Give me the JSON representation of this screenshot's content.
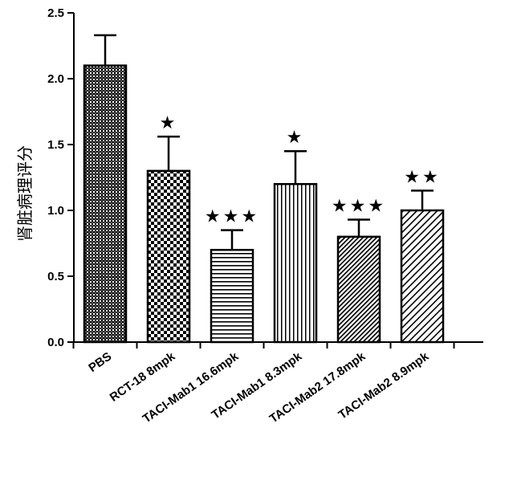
{
  "chart_data": {
    "type": "bar",
    "title": "",
    "xlabel": "",
    "ylabel": "肾脏病理评分",
    "ylim": [
      0,
      2.5
    ],
    "yticks": [
      "0.0",
      "0.5",
      "1.0",
      "1.5",
      "2.0",
      "2.5"
    ],
    "categories": [
      "PBS",
      "RCT-18 8mpk",
      "TACI-Mab1 16.6mpk",
      "TACI-Mab1 8.3mpk",
      "TACI-Mab2 17.8mpk",
      "TACI-Mab2 8.9mpk"
    ],
    "values": [
      2.1,
      1.3,
      0.7,
      1.2,
      0.8,
      1.0
    ],
    "errors": [
      0.23,
      0.26,
      0.15,
      0.25,
      0.13,
      0.15
    ],
    "significance": [
      "",
      "★",
      "★★★",
      "★",
      "★★★",
      "★★"
    ],
    "patterns": [
      "dense-grid",
      "checker",
      "horizontal-lines",
      "vertical-lines",
      "diagonal-dense",
      "diagonal"
    ]
  }
}
